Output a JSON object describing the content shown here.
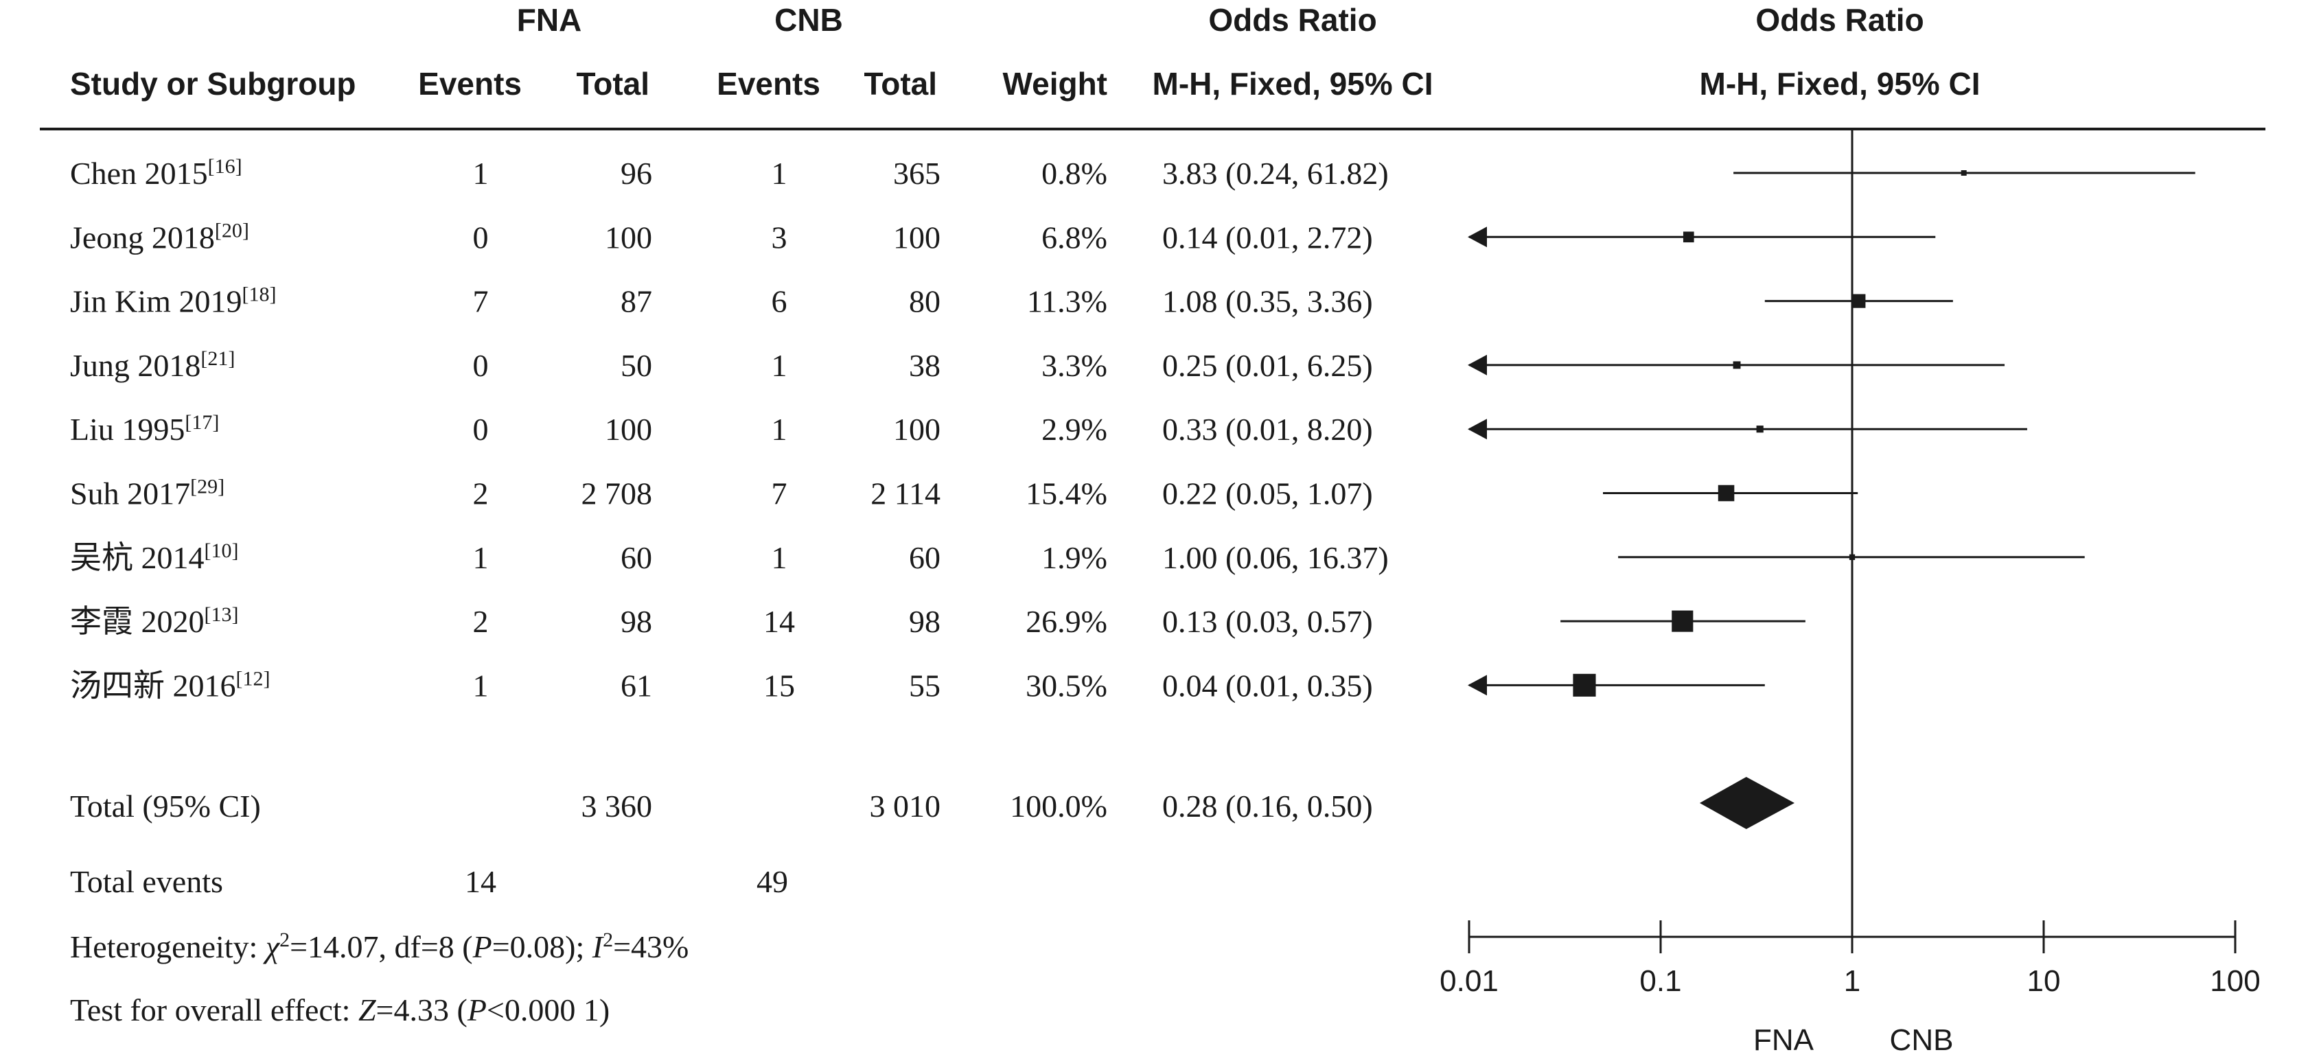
{
  "chart_data": {
    "type": "forest",
    "group_headers": {
      "group1": "FNA",
      "group2": "CNB",
      "effect_table": "Odds Ratio",
      "effect_plot": "Odds Ratio"
    },
    "column_headers": {
      "study": "Study or Subgroup",
      "events1": "Events",
      "total1": "Total",
      "events2": "Events",
      "total2": "Total",
      "weight": "Weight",
      "ci_table": "M-H, Fixed, 95% CI",
      "ci_plot": "M-H, Fixed, 95% CI"
    },
    "studies": [
      {
        "name": "Chen 2015",
        "ref": "[16]",
        "events1": "1",
        "total1": "96",
        "events2": "1",
        "total2": "365",
        "weight": "0.8%",
        "ci_text": "3.83 (0.24, 61.82)",
        "or": 3.83,
        "lower": 0.24,
        "upper": 61.82,
        "w": 0.8
      },
      {
        "name": "Jeong 2018",
        "ref": "[20]",
        "events1": "0",
        "total1": "100",
        "events2": "3",
        "total2": "100",
        "weight": "6.8%",
        "ci_text": "0.14 (0.01, 2.72)",
        "or": 0.14,
        "lower": 0.01,
        "upper": 2.72,
        "w": 6.8
      },
      {
        "name": "Jin Kim 2019",
        "ref": "[18]",
        "events1": "7",
        "total1": "87",
        "events2": "6",
        "total2": "80",
        "weight": "11.3%",
        "ci_text": "1.08 (0.35, 3.36)",
        "or": 1.08,
        "lower": 0.35,
        "upper": 3.36,
        "w": 11.3
      },
      {
        "name": "Jung 2018",
        "ref": "[21]",
        "events1": "0",
        "total1": "50",
        "events2": "1",
        "total2": "38",
        "weight": "3.3%",
        "ci_text": "0.25 (0.01, 6.25)",
        "or": 0.25,
        "lower": 0.01,
        "upper": 6.25,
        "w": 3.3
      },
      {
        "name": "Liu 1995",
        "ref": "[17]",
        "events1": "0",
        "total1": "100",
        "events2": "1",
        "total2": "100",
        "weight": "2.9%",
        "ci_text": "0.33 (0.01, 8.20)",
        "or": 0.33,
        "lower": 0.01,
        "upper": 8.2,
        "w": 2.9
      },
      {
        "name": "Suh 2017",
        "ref": "[29]",
        "events1": "2",
        "total1": "2 708",
        "events2": "7",
        "total2": "2 114",
        "weight": "15.4%",
        "ci_text": "0.22 (0.05, 1.07)",
        "or": 0.22,
        "lower": 0.05,
        "upper": 1.07,
        "w": 15.4
      },
      {
        "name": "吴杭 2014",
        "ref": "[10]",
        "events1": "1",
        "total1": "60",
        "events2": "1",
        "total2": "60",
        "weight": "1.9%",
        "ci_text": "1.00 (0.06, 16.37)",
        "or": 1.0,
        "lower": 0.06,
        "upper": 16.37,
        "w": 1.9
      },
      {
        "name": "李霞 2020",
        "ref": "[13]",
        "events1": "2",
        "total1": "98",
        "events2": "14",
        "total2": "98",
        "weight": "26.9%",
        "ci_text": "0.13 (0.03, 0.57)",
        "or": 0.13,
        "lower": 0.03,
        "upper": 0.57,
        "w": 26.9
      },
      {
        "name": "汤四新 2016",
        "ref": "[12]",
        "events1": "1",
        "total1": "61",
        "events2": "15",
        "total2": "55",
        "weight": "30.5%",
        "ci_text": "0.04 (0.01, 0.35)",
        "or": 0.04,
        "lower": 0.01,
        "upper": 0.35,
        "w": 30.5
      }
    ],
    "total": {
      "label": "Total (95% CI)",
      "total1": "3 360",
      "total2": "3 010",
      "weight": "100.0%",
      "ci_text": "0.28 (0.16, 0.50)",
      "or": 0.28,
      "lower": 0.16,
      "upper": 0.5
    },
    "total_events": {
      "label": "Total events",
      "events1": "14",
      "events2": "49"
    },
    "heterogeneity": {
      "label": "Heterogeneity: ",
      "chi": "χ",
      "chi_sup": "2",
      "chi_val": "=14.07, df=8 (",
      "p": "P",
      "p_val": "=0.08); ",
      "i": "I",
      "i_sup": "2",
      "i_val": "=43%"
    },
    "overall_effect": {
      "label": "Test for overall effect: ",
      "z": "Z",
      "z_val": "=4.33 (",
      "p": "P",
      "p_val": "<0.000 1)"
    },
    "axis": {
      "scale": "log",
      "min": 0.01,
      "max": 100,
      "null_value": 1,
      "ticks": [
        0.01,
        0.1,
        1,
        10,
        100
      ],
      "tick_labels": [
        "0.01",
        "0.1",
        "1",
        "10",
        "100"
      ]
    },
    "favours": {
      "left": "FNA",
      "right": "CNB"
    }
  }
}
